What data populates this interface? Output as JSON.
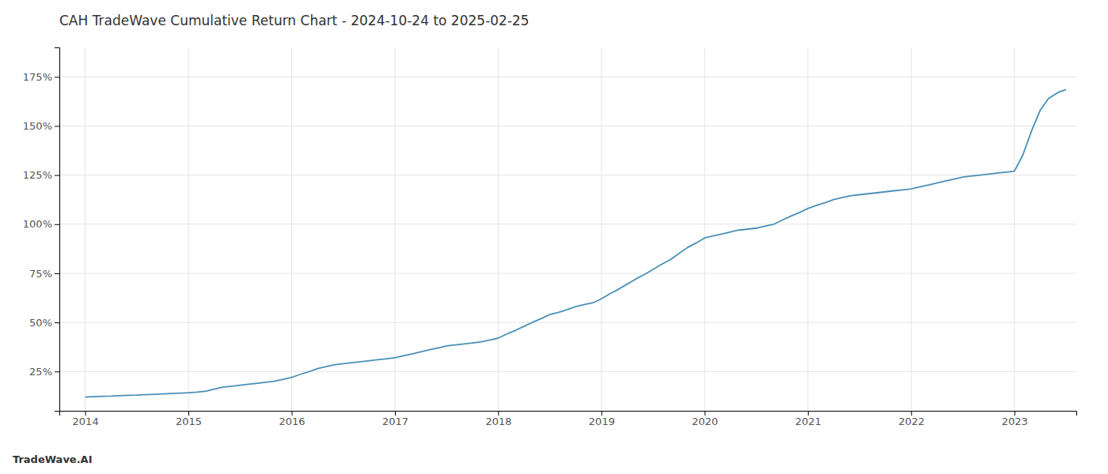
{
  "chart_data": {
    "type": "line",
    "title": "CAH TradeWave Cumulative Return Chart - 2024-10-24 to 2025-02-25",
    "annotations": [
      "TradeWave.AI"
    ],
    "color": "#4a90b8",
    "grid": true,
    "x": [
      2014.0,
      2014.08,
      2014.17,
      2014.25,
      2014.33,
      2014.42,
      2014.5,
      2014.58,
      2014.67,
      2014.75,
      2014.83,
      2014.92,
      2015.0,
      2015.08,
      2015.17,
      2015.25,
      2015.33,
      2015.42,
      2015.5,
      2015.58,
      2015.67,
      2015.75,
      2015.83,
      2015.92,
      2016.0,
      2016.08,
      2016.17,
      2016.25,
      2016.33,
      2016.42,
      2016.5,
      2016.58,
      2016.67,
      2016.75,
      2016.83,
      2016.92,
      2017.0,
      2017.08,
      2017.17,
      2017.25,
      2017.33,
      2017.42,
      2017.5,
      2017.58,
      2017.67,
      2017.75,
      2017.83,
      2017.92,
      2018.0,
      2018.08,
      2018.17,
      2018.25,
      2018.33,
      2018.42,
      2018.5,
      2018.58,
      2018.67,
      2018.75,
      2018.83,
      2018.92,
      2019.0,
      2019.08,
      2019.17,
      2019.25,
      2019.33,
      2019.42,
      2019.5,
      2019.58,
      2019.67,
      2019.75,
      2019.83,
      2019.92,
      2020.0,
      2020.08,
      2020.17,
      2020.25,
      2020.33,
      2020.42,
      2020.5,
      2020.58,
      2020.67,
      2020.75,
      2020.83,
      2020.92,
      2021.0,
      2021.08,
      2021.17,
      2021.25,
      2021.33,
      2021.42,
      2021.5,
      2021.58,
      2021.67,
      2021.75,
      2021.83,
      2021.92,
      2022.0,
      2022.08,
      2022.17,
      2022.25,
      2022.33,
      2022.42,
      2022.5,
      2022.58,
      2022.67,
      2022.75,
      2022.83,
      2022.92,
      2023.0,
      2023.08,
      2023.17,
      2023.25,
      2023.33,
      2023.42,
      2023.5
    ],
    "values": [
      12.0,
      12.2,
      12.4,
      12.5,
      12.7,
      12.9,
      13.0,
      13.2,
      13.4,
      13.6,
      13.8,
      14.0,
      14.2,
      14.5,
      15.0,
      16.0,
      17.0,
      17.5,
      18.0,
      18.5,
      19.0,
      19.5,
      20.0,
      21.0,
      22.0,
      23.5,
      25.0,
      26.5,
      27.5,
      28.5,
      29.0,
      29.5,
      30.0,
      30.5,
      31.0,
      31.5,
      32.0,
      33.0,
      34.0,
      35.0,
      36.0,
      37.0,
      38.0,
      38.5,
      39.0,
      39.5,
      40.0,
      41.0,
      42.0,
      44.0,
      46.0,
      48.0,
      50.0,
      52.0,
      54.0,
      55.0,
      56.5,
      58.0,
      59.0,
      60.0,
      62.0,
      64.5,
      67.0,
      69.5,
      72.0,
      74.5,
      77.0,
      79.5,
      82.0,
      85.0,
      88.0,
      90.5,
      93.0,
      94.0,
      95.0,
      96.0,
      97.0,
      97.5,
      98.0,
      99.0,
      100.0,
      102.0,
      104.0,
      106.0,
      108.0,
      109.5,
      111.0,
      112.5,
      113.5,
      114.5,
      115.0,
      115.5,
      116.0,
      116.5,
      117.0,
      117.5,
      118.0,
      119.0,
      120.0,
      121.0,
      122.0,
      123.0,
      124.0,
      124.5,
      125.0,
      125.5,
      126.0,
      126.5,
      127.0,
      135.0,
      148.0,
      158.0,
      164.0,
      167.0,
      168.5
    ],
    "xlim": [
      2013.75,
      2023.6
    ],
    "ylim": [
      5,
      190
    ],
    "xticks": [
      2014,
      2015,
      2016,
      2017,
      2018,
      2019,
      2020,
      2021,
      2022,
      2023
    ],
    "yticks": [
      {
        "value": 25,
        "label": "25%"
      },
      {
        "value": 50,
        "label": "50%"
      },
      {
        "value": 75,
        "label": "75%"
      },
      {
        "value": 100,
        "label": "100%"
      },
      {
        "value": 125,
        "label": "125%"
      },
      {
        "value": 150,
        "label": "150%"
      },
      {
        "value": 175,
        "label": "175%"
      }
    ]
  }
}
